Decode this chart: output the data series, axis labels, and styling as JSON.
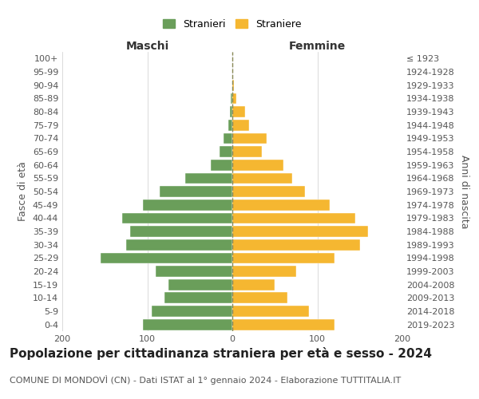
{
  "age_groups_bottom_to_top": [
    "0-4",
    "5-9",
    "10-14",
    "15-19",
    "20-24",
    "25-29",
    "30-34",
    "35-39",
    "40-44",
    "45-49",
    "50-54",
    "55-59",
    "60-64",
    "65-69",
    "70-74",
    "75-79",
    "80-84",
    "85-89",
    "90-94",
    "95-99",
    "100+"
  ],
  "birth_years_bottom_to_top": [
    "2019-2023",
    "2014-2018",
    "2009-2013",
    "2004-2008",
    "1999-2003",
    "1994-1998",
    "1989-1993",
    "1984-1988",
    "1979-1983",
    "1974-1978",
    "1969-1973",
    "1964-1968",
    "1959-1963",
    "1954-1958",
    "1949-1953",
    "1944-1948",
    "1939-1943",
    "1934-1938",
    "1929-1933",
    "1924-1928",
    "≤ 1923"
  ],
  "maschi_bottom_to_top": [
    105,
    95,
    80,
    75,
    90,
    155,
    125,
    120,
    130,
    105,
    85,
    55,
    25,
    15,
    10,
    5,
    3,
    2,
    0,
    0,
    0
  ],
  "femmine_bottom_to_top": [
    120,
    90,
    65,
    50,
    75,
    120,
    150,
    160,
    145,
    115,
    85,
    70,
    60,
    35,
    40,
    20,
    15,
    5,
    2,
    0,
    0
  ],
  "maschi_color": "#6a9e5a",
  "femmine_color": "#f5b731",
  "dashed_line_color": "#888855",
  "background_color": "#ffffff",
  "grid_color": "#cccccc",
  "title": "Popolazione per cittadinanza straniera per età e sesso - 2024",
  "subtitle": "COMUNE DI MONDOVÌ (CN) - Dati ISTAT al 1° gennaio 2024 - Elaborazione TUTTITALIA.IT",
  "ylabel_left": "Fasce di età",
  "ylabel_right": "Anni di nascita",
  "header_maschi": "Maschi",
  "header_femmine": "Femmine",
  "legend_maschi": "Stranieri",
  "legend_femmine": "Straniere",
  "xlim": 200,
  "title_fontsize": 11,
  "subtitle_fontsize": 8,
  "header_fontsize": 10,
  "axis_label_fontsize": 9,
  "tick_fontsize": 8
}
